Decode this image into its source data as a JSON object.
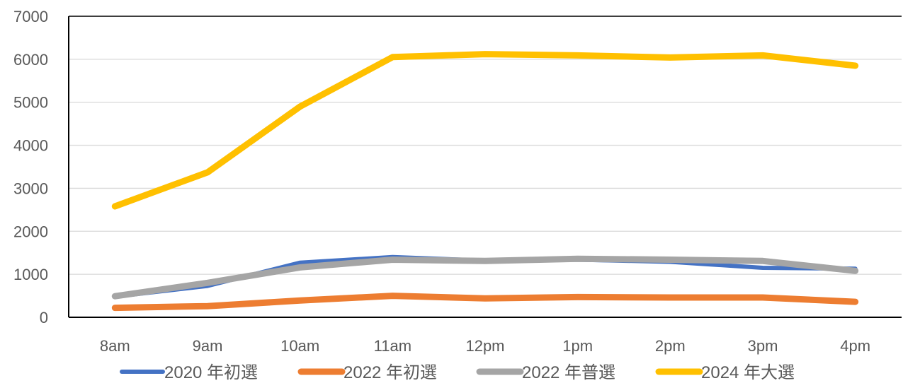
{
  "chart_data": {
    "type": "line",
    "title": "",
    "xlabel": "",
    "ylabel": "",
    "categories": [
      "8am",
      "9am",
      "10am",
      "11am",
      "12pm",
      "1pm",
      "2pm",
      "3pm",
      "4pm"
    ],
    "ylim": [
      0,
      7000
    ],
    "yticks": [
      "0",
      "1000",
      "2000",
      "3000",
      "4000",
      "5000",
      "6000",
      "7000"
    ],
    "grid": true,
    "legend_position": "bottom",
    "series": [
      {
        "name": "2020 年初選",
        "color": "#4472C4",
        "values": [
          480,
          730,
          1270,
          1400,
          1320,
          1340,
          1290,
          1150,
          1130
        ]
      },
      {
        "name": "2022 年初選",
        "color": "#ED7D31",
        "values": [
          220,
          260,
          390,
          500,
          440,
          470,
          460,
          460,
          360
        ]
      },
      {
        "name": "2022 年普選",
        "color": "#A5A5A5",
        "values": [
          490,
          800,
          1160,
          1340,
          1310,
          1360,
          1340,
          1310,
          1080
        ]
      },
      {
        "name": "2024 年大選",
        "color": "#FFC000",
        "values": [
          2580,
          3370,
          4900,
          6050,
          6120,
          6090,
          6040,
          6090,
          5850
        ]
      }
    ]
  }
}
